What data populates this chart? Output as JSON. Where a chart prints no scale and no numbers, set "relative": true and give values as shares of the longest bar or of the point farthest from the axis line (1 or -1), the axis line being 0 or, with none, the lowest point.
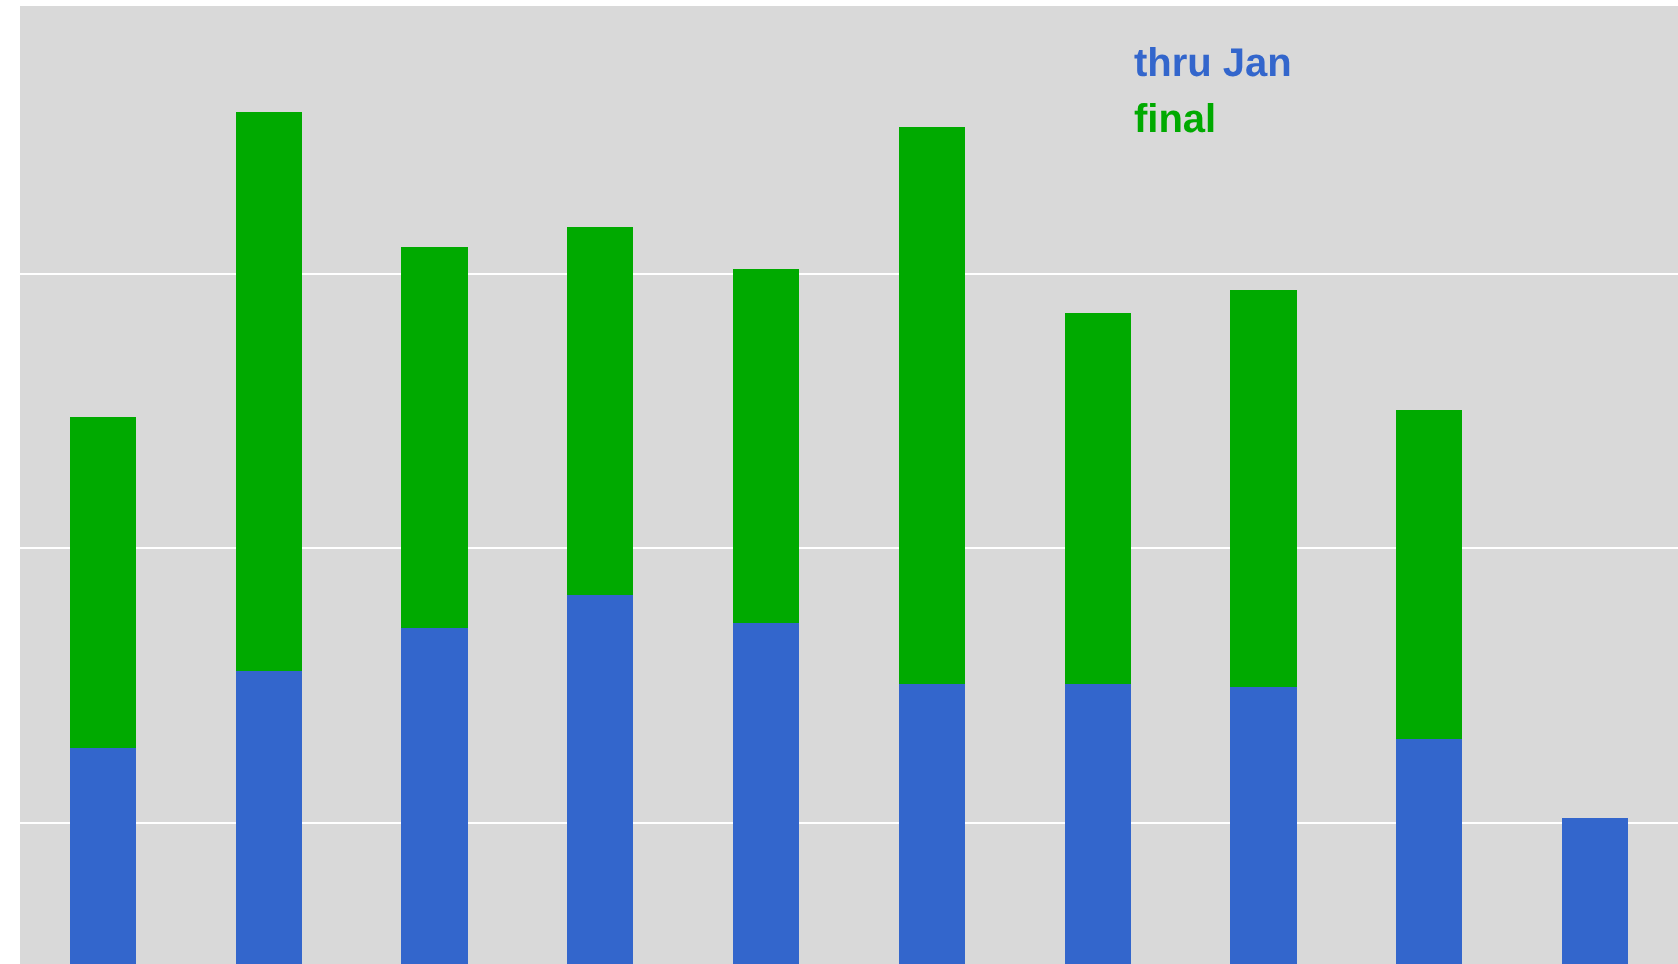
{
  "chart_data": {
    "type": "bar",
    "relative": true,
    "stacked": true,
    "grid": "y",
    "legend": "top right",
    "categories": [
      null,
      null,
      null,
      null,
      null,
      null,
      null,
      null,
      null,
      null
    ],
    "series": [
      {
        "name": "thru Jan",
        "color": "#3366cc",
        "values": [
          0.254,
          0.344,
          0.395,
          0.433,
          0.4,
          0.329,
          0.329,
          0.325,
          0.264,
          0.172
        ]
      },
      {
        "name": "final",
        "color": "#00aa00",
        "values": [
          0.388,
          0.656,
          0.447,
          0.433,
          0.416,
          0.654,
          0.435,
          0.466,
          0.386,
          null
        ]
      }
    ]
  }
}
